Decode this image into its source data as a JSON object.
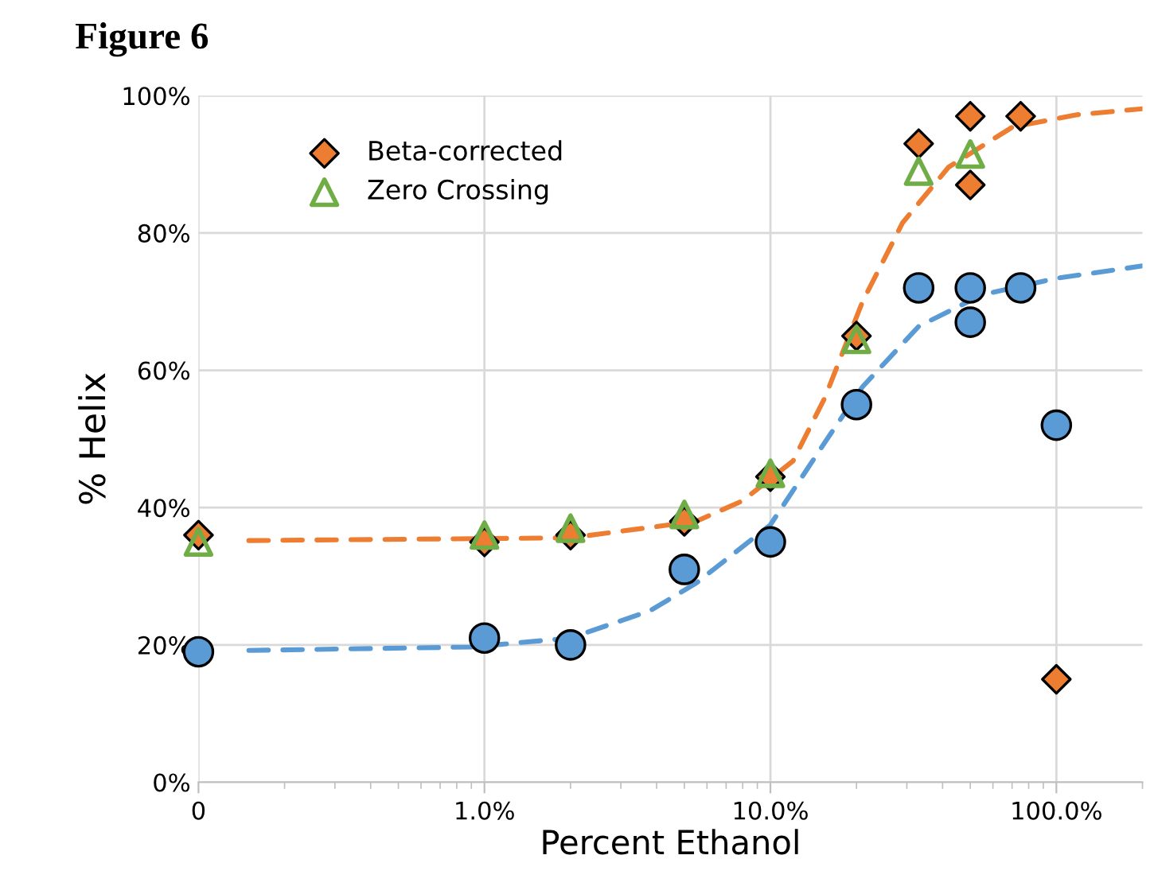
{
  "chart_data": {
    "type": "scatter",
    "title": "Figure 6",
    "xlabel": "Percent Ethanol",
    "ylabel": "% Helix",
    "log": "x",
    "grid": true,
    "legend": "top left",
    "xlim": [
      0.1,
      200
    ],
    "xticks": [
      {
        "value": 0.1,
        "label": "0"
      },
      {
        "value": 1,
        "label": "1.0%"
      },
      {
        "value": 10,
        "label": "10.0%"
      },
      {
        "value": 100,
        "label": "100.0%"
      }
    ],
    "ylim": [
      0,
      100
    ],
    "yticks": [
      {
        "value": 0,
        "label": "0%"
      },
      {
        "value": 20,
        "label": "20%"
      },
      {
        "value": 40,
        "label": "40%"
      },
      {
        "value": 60,
        "label": "60%"
      },
      {
        "value": 80,
        "label": "80%"
      },
      {
        "value": 100,
        "label": "100%"
      }
    ],
    "series": [
      {
        "type": "line",
        "line_style": "dashed",
        "marker": "none",
        "color": "#5b9bd5",
        "x": [
          0.15,
          0.9,
          2,
          3.8,
          5.5,
          10,
          15.5,
          21,
          33,
          55,
          100,
          200
        ],
        "values": [
          19.2,
          19.7,
          21,
          25,
          29,
          37.5,
          49.5,
          57.6,
          66.4,
          71,
          73.4,
          75.2
        ]
      },
      {
        "type": "line",
        "line_style": "dashed",
        "marker": "none",
        "color": "#ed7d31",
        "x": [
          0.15,
          2,
          5.5,
          8,
          12,
          15.5,
          21,
          29,
          42,
          70,
          117,
          200
        ],
        "values": [
          35.2,
          35.6,
          38,
          41,
          46.8,
          56,
          70,
          81.5,
          89.6,
          95.4,
          97.2,
          98.1
        ]
      },
      {
        "marker": "circle",
        "color": "#5b9bd5",
        "x": [
          0.1,
          1,
          2,
          5,
          10,
          20,
          33,
          50,
          50,
          75,
          100
        ],
        "values": [
          19,
          21,
          20,
          31,
          35,
          55,
          72,
          72,
          67,
          72,
          52
        ]
      },
      {
        "name": "Beta-corrected",
        "marker": "diamond",
        "color": "#ed7d31",
        "x": [
          0.1,
          1,
          2,
          5,
          10,
          20,
          33,
          50,
          50,
          75,
          100
        ],
        "values": [
          36,
          35,
          36,
          38,
          44.5,
          65,
          93,
          97,
          87,
          97,
          15
        ]
      },
      {
        "name": "Zero Crossing",
        "marker": "triangle",
        "color": "#70ad47",
        "x": [
          0.1,
          1,
          2,
          5,
          10,
          20,
          33,
          50
        ],
        "values": [
          35,
          36,
          37,
          39,
          45,
          64.5,
          89,
          91.5
        ]
      }
    ]
  }
}
